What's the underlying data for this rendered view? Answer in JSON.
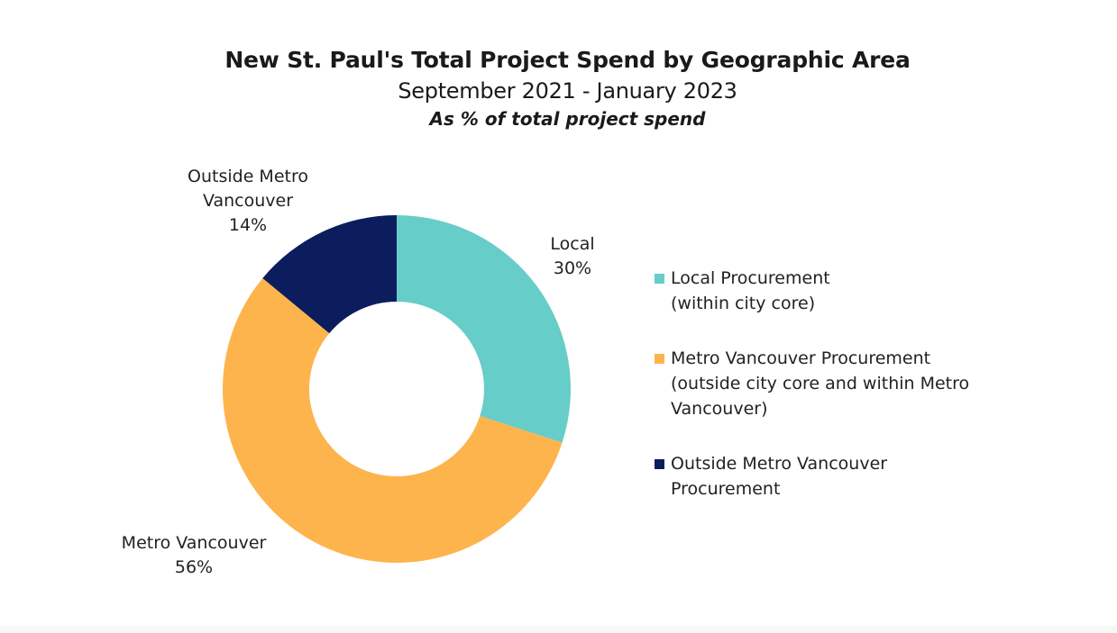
{
  "chart_data": {
    "type": "pie",
    "donut": true,
    "title": "New St. Paul's Total Project Spend by Geographic Area",
    "subtitle": "September 2021 - January 2023",
    "subtitle2": "As % of total project spend",
    "slices": [
      {
        "label_lines": [
          "Local",
          "30%"
        ],
        "value": 30,
        "color": "#66CDC9",
        "legend_lines": [
          "Local Procurement",
          "(within city core)"
        ]
      },
      {
        "label_lines": [
          "Metro Vancouver",
          "56%"
        ],
        "value": 56,
        "color": "#FEB44C",
        "legend_lines": [
          "Metro Vancouver Procurement",
          "(outside city core and within Metro",
          "Vancouver)"
        ]
      },
      {
        "label_lines": [
          "Outside Metro",
          "Vancouver",
          "14%"
        ],
        "value": 14,
        "color": "#0C1D5E",
        "legend_lines": [
          "Outside Metro Vancouver",
          "Procurement"
        ]
      }
    ],
    "legend_position": "right"
  }
}
